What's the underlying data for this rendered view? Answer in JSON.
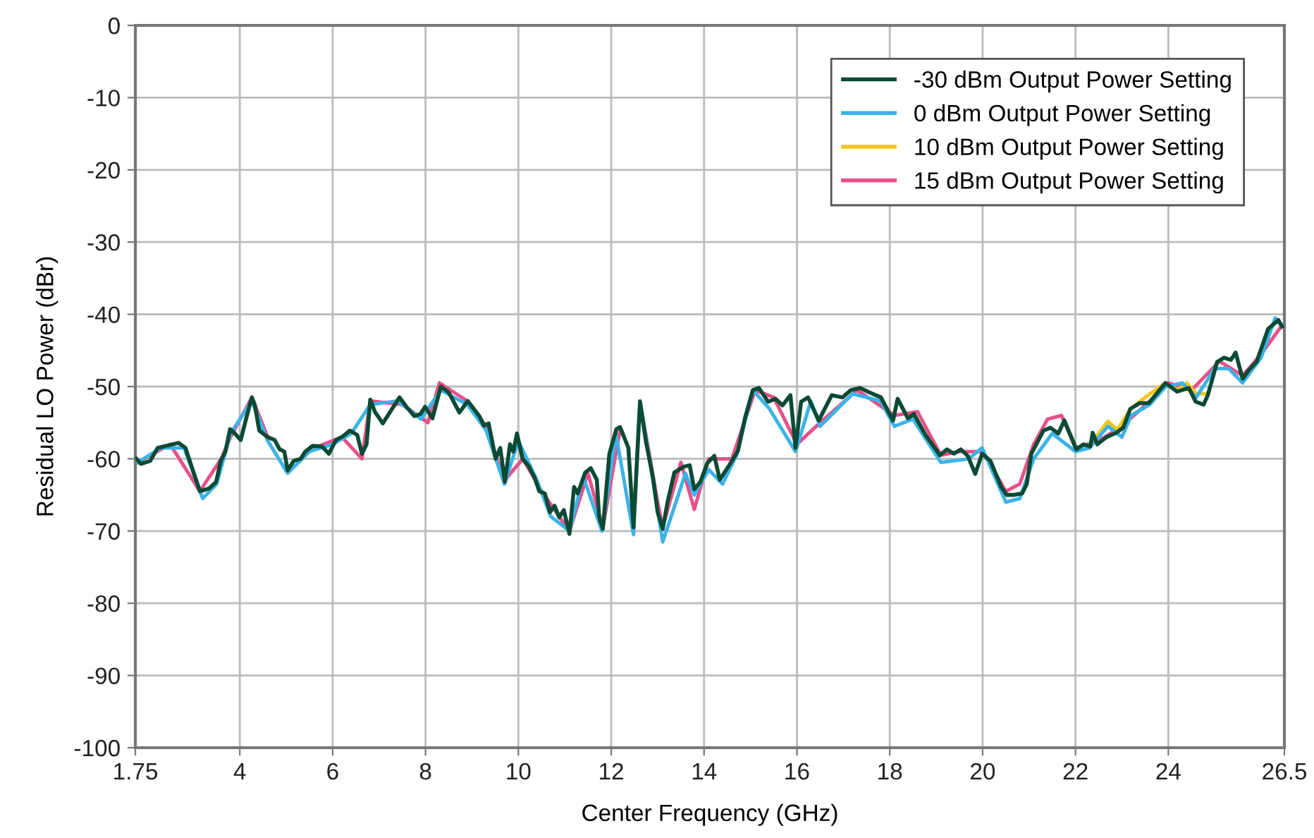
{
  "chart_data": {
    "type": "line",
    "xlabel": "Center Frequency (GHz)",
    "ylabel": "Residual LO Power (dBr)",
    "xlim": [
      1.75,
      26.5
    ],
    "xticks": [
      1.75,
      4,
      6,
      8,
      10,
      12,
      14,
      16,
      18,
      20,
      22,
      24,
      26.5
    ],
    "ylim": [
      -100,
      0
    ],
    "yticks": [
      -100,
      -90,
      -80,
      -70,
      -60,
      -50,
      -40,
      -30,
      -20,
      -10,
      0
    ],
    "grid": true,
    "legend": "top right",
    "marker": "none",
    "line_style": "solid",
    "series": [
      {
        "name": "-30 dBm Output Power Setting",
        "color": "#0b4a34",
        "x": [
          1.77,
          1.87,
          2.07,
          2.23,
          2.68,
          2.83,
          2.99,
          3.14,
          3.34,
          3.49,
          3.59,
          3.69,
          3.79,
          3.88,
          4.02,
          4.15,
          4.26,
          4.32,
          4.42,
          4.6,
          4.75,
          4.86,
          4.96,
          5.03,
          5.16,
          5.31,
          5.41,
          5.57,
          5.77,
          5.92,
          6.07,
          6.22,
          6.37,
          6.53,
          6.63,
          6.73,
          6.81,
          6.91,
          7.08,
          7.24,
          7.44,
          7.59,
          7.76,
          7.89,
          7.99,
          8.15,
          8.33,
          8.5,
          8.73,
          8.91,
          9.16,
          9.26,
          9.36,
          9.51,
          9.61,
          9.71,
          9.82,
          9.89,
          9.97,
          10.09,
          10.22,
          10.35,
          10.45,
          10.57,
          10.68,
          10.78,
          10.88,
          10.98,
          11.1,
          11.2,
          11.28,
          11.44,
          11.56,
          11.69,
          11.74,
          11.82,
          11.96,
          12.11,
          12.19,
          12.37,
          12.48,
          12.62,
          12.75,
          12.9,
          13.0,
          13.11,
          13.21,
          13.36,
          13.56,
          13.69,
          13.79,
          13.92,
          14.07,
          14.22,
          14.34,
          14.47,
          14.6,
          14.73,
          14.88,
          15.05,
          15.18,
          15.38,
          15.54,
          15.69,
          15.86,
          15.97,
          16.09,
          16.24,
          16.47,
          16.75,
          16.98,
          17.16,
          17.36,
          17.56,
          17.81,
          18.07,
          18.17,
          18.39,
          18.52,
          18.77,
          19.08,
          19.23,
          19.38,
          19.53,
          19.68,
          19.84,
          19.99,
          20.17,
          20.4,
          20.52,
          20.68,
          20.85,
          20.95,
          21.05,
          21.31,
          21.46,
          21.63,
          21.76,
          22.02,
          22.17,
          22.32,
          22.37,
          22.47,
          22.67,
          22.88,
          23.03,
          23.18,
          23.38,
          23.58,
          23.94,
          24.19,
          24.44,
          24.59,
          24.76,
          24.85,
          25.05,
          25.2,
          25.35,
          25.45,
          25.6,
          25.75,
          25.9,
          26.15,
          26.37,
          26.45
        ],
        "values": [
          -60.0,
          -60.7,
          -60.3,
          -58.5,
          -57.8,
          -58.5,
          -61.6,
          -64.5,
          -64.1,
          -63.2,
          -60.3,
          -59.0,
          -55.9,
          -56.4,
          -57.4,
          -54.1,
          -51.5,
          -52.5,
          -56.1,
          -57.0,
          -57.4,
          -58.7,
          -59.0,
          -61.6,
          -60.3,
          -60.0,
          -59.0,
          -58.2,
          -58.3,
          -59.3,
          -57.4,
          -56.9,
          -56.1,
          -56.7,
          -59.3,
          -58.0,
          -51.8,
          -53.5,
          -55.1,
          -53.5,
          -51.5,
          -52.8,
          -54.1,
          -53.8,
          -52.8,
          -54.4,
          -50.0,
          -50.8,
          -53.6,
          -52.0,
          -54.1,
          -55.4,
          -55.1,
          -60.0,
          -58.5,
          -63.2,
          -58.0,
          -59.0,
          -56.5,
          -60.0,
          -61.0,
          -62.6,
          -64.5,
          -64.8,
          -67.4,
          -66.5,
          -68.1,
          -67.1,
          -70.4,
          -63.9,
          -64.8,
          -61.9,
          -61.3,
          -62.9,
          -68.1,
          -69.7,
          -59.3,
          -55.9,
          -55.6,
          -58.5,
          -69.5,
          -52.1,
          -57.7,
          -62.6,
          -67.4,
          -69.7,
          -66.1,
          -61.9,
          -61.1,
          -60.9,
          -64.2,
          -63.2,
          -60.6,
          -59.6,
          -62.9,
          -61.6,
          -60.3,
          -58.9,
          -54.4,
          -50.5,
          -50.2,
          -52.1,
          -51.7,
          -52.6,
          -51.2,
          -58.5,
          -52.1,
          -51.5,
          -54.7,
          -51.2,
          -51.5,
          -50.5,
          -50.2,
          -50.8,
          -51.5,
          -54.7,
          -51.7,
          -54.4,
          -53.8,
          -56.7,
          -59.5,
          -58.7,
          -59.3,
          -58.7,
          -59.6,
          -62.1,
          -59.3,
          -60.3,
          -63.9,
          -65.0,
          -65.0,
          -64.8,
          -63.5,
          -59.3,
          -56.1,
          -55.7,
          -56.5,
          -54.7,
          -58.7,
          -58.0,
          -58.3,
          -56.4,
          -58.0,
          -57.0,
          -56.4,
          -55.7,
          -53.1,
          -52.3,
          -52.3,
          -49.5,
          -50.7,
          -50.2,
          -52.1,
          -52.5,
          -51.2,
          -46.6,
          -46.0,
          -46.3,
          -45.3,
          -48.9,
          -47.6,
          -46.6,
          -42.0,
          -40.8,
          -41.7
        ]
      },
      {
        "name": "0 dBm Output Power Setting",
        "color": "#3bb3e8",
        "x": [
          1.8,
          2.3,
          2.8,
          3.2,
          3.5,
          3.8,
          4.26,
          4.6,
          5.03,
          5.5,
          6.0,
          6.4,
          6.81,
          7.4,
          7.9,
          8.33,
          8.9,
          9.3,
          9.7,
          10.0,
          10.4,
          10.7,
          10.9,
          11.1,
          11.4,
          11.8,
          12.1,
          12.48,
          12.62,
          13.11,
          13.6,
          13.79,
          14.1,
          14.4,
          14.7,
          15.05,
          15.4,
          15.97,
          16.3,
          16.5,
          17.2,
          17.8,
          18.1,
          18.5,
          19.1,
          19.7,
          19.99,
          20.5,
          20.8,
          21.1,
          21.5,
          22.0,
          22.3,
          22.7,
          23.0,
          23.2,
          23.6,
          23.94,
          24.3,
          24.6,
          25.0,
          25.3,
          25.6,
          26.0,
          26.3,
          26.45
        ],
        "values": [
          -60.5,
          -58.5,
          -58.5,
          -65.5,
          -63.5,
          -56.5,
          -52.0,
          -57.5,
          -62.0,
          -59.0,
          -58.0,
          -56.5,
          -52.5,
          -52.0,
          -54.5,
          -50.5,
          -52.5,
          -56.0,
          -63.5,
          -57.5,
          -63.0,
          -68.0,
          -69.0,
          -70.0,
          -62.5,
          -70.0,
          -56.5,
          -70.5,
          -52.0,
          -71.5,
          -62.0,
          -65.0,
          -61.5,
          -63.5,
          -59.5,
          -50.5,
          -53.0,
          -59.0,
          -52.0,
          -55.5,
          -51.0,
          -52.0,
          -55.5,
          -54.5,
          -60.5,
          -60.0,
          -58.5,
          -66.0,
          -65.5,
          -60.0,
          -56.5,
          -59.0,
          -58.5,
          -55.5,
          -57.0,
          -54.0,
          -52.5,
          -50.0,
          -49.5,
          -51.5,
          -47.5,
          -47.5,
          -49.5,
          -46.0,
          -40.5,
          -41.5
        ]
      },
      {
        "name": "10 dBm Output Power Setting",
        "color": "#f5c518",
        "x": [
          22.3,
          22.5,
          22.7,
          22.9,
          23.2,
          23.5,
          23.94,
          24.2,
          24.4,
          24.6,
          24.8
        ],
        "values": [
          -58.0,
          -56.5,
          -54.8,
          -56.0,
          -53.0,
          -51.5,
          -49.5,
          -50.5,
          -49.5,
          -51.0,
          -51.0
        ]
      },
      {
        "name": "15 dBm Output Power Setting",
        "color": "#e8508a",
        "x": [
          1.8,
          2.5,
          3.14,
          3.6,
          3.8,
          4.26,
          4.6,
          5.03,
          5.6,
          6.2,
          6.63,
          6.81,
          7.5,
          8.05,
          8.3,
          8.9,
          9.3,
          9.7,
          10.1,
          10.5,
          11.1,
          11.5,
          11.82,
          12.19,
          12.48,
          12.62,
          13.0,
          13.11,
          13.5,
          13.79,
          14.1,
          14.6,
          15.1,
          15.5,
          16.0,
          16.5,
          17.3,
          18.1,
          18.6,
          19.1,
          19.5,
          20.0,
          20.5,
          20.8,
          21.1,
          21.4,
          21.7,
          22.0,
          22.5,
          23.0,
          23.6,
          24.0,
          24.5,
          25.1,
          25.6,
          26.0,
          26.45
        ],
        "values": [
          -60.5,
          -58.0,
          -64.5,
          -60.0,
          -57.0,
          -51.5,
          -57.0,
          null,
          -58.5,
          -57.0,
          -60.0,
          -52.0,
          -52.5,
          -55.0,
          -49.5,
          -52.0,
          -55.5,
          -63.0,
          -60.0,
          -64.5,
          -70.0,
          -62.0,
          -69.5,
          -56.0,
          null,
          -52.0,
          -66.0,
          -69.5,
          -60.5,
          -67.0,
          -60.0,
          -60.0,
          -50.5,
          -51.5,
          -58.0,
          -55.0,
          -50.5,
          -54.0,
          -53.5,
          -59.5,
          -59.0,
          -59.0,
          -64.5,
          -63.5,
          -58.0,
          -54.5,
          -54.0,
          -58.5,
          -57.5,
          -55.5,
          -52.0,
          -49.5,
          -50.5,
          -46.5,
          -48.5,
          -45.5,
          -41.5
        ]
      }
    ]
  }
}
